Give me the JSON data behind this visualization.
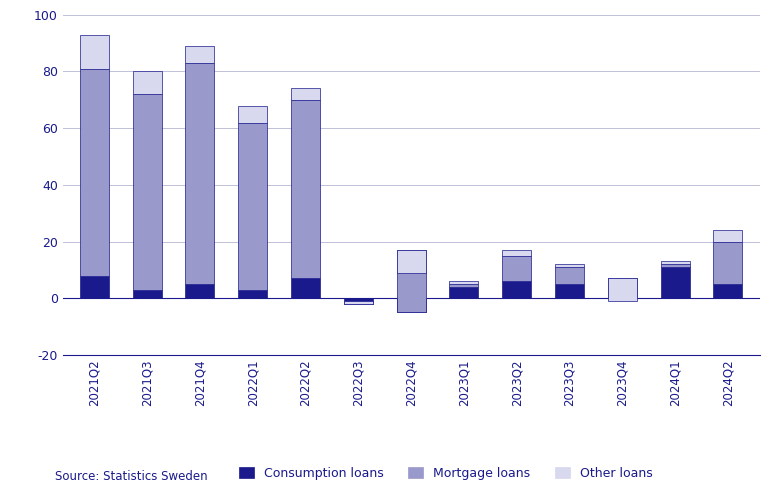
{
  "categories": [
    "2021Q2",
    "2021Q3",
    "2021Q4",
    "2022Q1",
    "2022Q2",
    "2022Q3",
    "2022Q4",
    "2023Q1",
    "2023Q2",
    "2023Q3",
    "2023Q4",
    "2024Q1",
    "2024Q2"
  ],
  "consumption": [
    8,
    3,
    5,
    3,
    7,
    -2,
    -5,
    4,
    6,
    5,
    1,
    11,
    5
  ],
  "mortgage": [
    73,
    69,
    78,
    59,
    63,
    1,
    22,
    1,
    9,
    6,
    6,
    1,
    15
  ],
  "other": [
    12,
    8,
    6,
    6,
    4,
    -1,
    -8,
    1,
    2,
    1,
    -8,
    1,
    4
  ],
  "color_consumption": "#1a1a8c",
  "color_mortgage": "#9999cc",
  "color_other": "#d8d8ee",
  "ylim": [
    -20,
    100
  ],
  "source": "Source: Statistics Sweden",
  "legend_labels": [
    "Consumption loans",
    "Mortgage loans",
    "Other loans"
  ],
  "bar_width": 0.55
}
